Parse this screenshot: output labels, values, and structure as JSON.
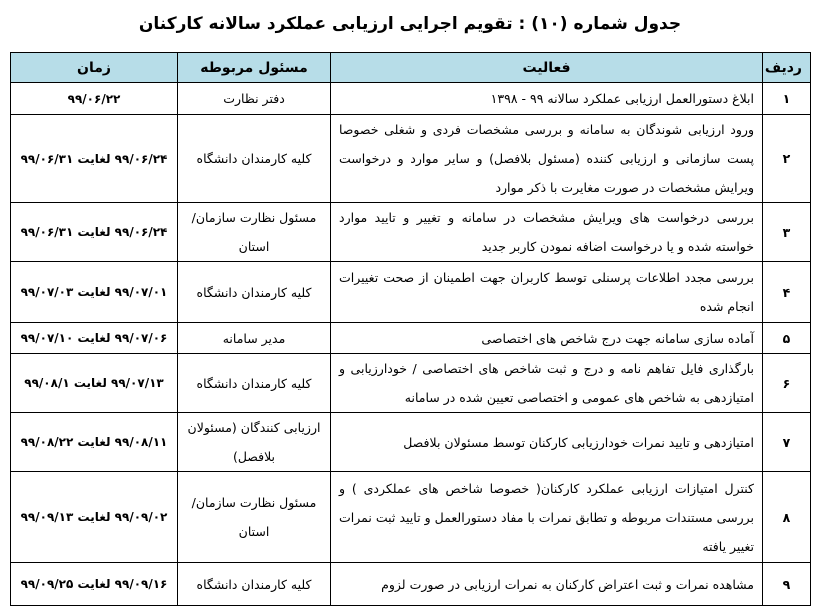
{
  "title": "جدول شماره (۱۰) : تقویم اجرایی ارزیابی عملکرد سالانه کارکنان",
  "headers": {
    "row": "ردیف",
    "activity": "فعالیت",
    "responsible": "مسئول مربوطه",
    "time": "زمان"
  },
  "header_color": "#b7dde8",
  "rows": [
    {
      "num": "۱",
      "activity": "ابلاغ دستورالعمل ارزیابی عملکرد سالانه ۹۹ - ۱۳۹۸",
      "responsible": "دفتر نظارت",
      "time": "۹۹/۰۶/۲۲"
    },
    {
      "num": "۲",
      "activity": "ورود ارزیابی شوندگان به سامانه و بررسی مشخصات فردی و شغلی خصوصا پست سازمانی و ارزیابی کننده (مسئول بلافصل) و سایر موارد و درخواست ویرایش مشخصات در صورت مغایرت با ذکر موارد",
      "responsible": "کلیه کارمندان دانشگاه",
      "time": "۹۹/۰۶/۲۴ لغایت ۹۹/۰۶/۳۱"
    },
    {
      "num": "۳",
      "activity": "بررسی درخواست های ویرایش مشخصات در سامانه و تغییر و تایید موارد خواسته شده و یا درخواست اضافه نمودن کاربر جدید",
      "responsible": "مسئول نظارت سازمان/استان",
      "time": "۹۹/۰۶/۲۴ لغایت ۹۹/۰۶/۳۱"
    },
    {
      "num": "۴",
      "activity": "بررسی مجدد اطلاعات پرسنلی توسط کاربران جهت اطمینان از صحت تغییرات انجام شده",
      "responsible": "کلیه کارمندان دانشگاه",
      "time": "۹۹/۰۷/۰۱ لغایت ۹۹/۰۷/۰۳"
    },
    {
      "num": "۵",
      "activity": "آماده سازی سامانه جهت درج شاخص های اختصاصی",
      "responsible": "مدیر سامانه",
      "time": "۹۹/۰۷/۰۶ لغایت ۹۹/۰۷/۱۰"
    },
    {
      "num": "۶",
      "activity": "بارگذاری فایل تفاهم نامه و درج و ثبت شاخص های اختصاصی / خودارزیابی و امتیازدهی به شاخص های عمومی و اختصاصی تعیین شده در سامانه",
      "responsible": "کلیه کارمندان دانشگاه",
      "time": "۹۹/۰۷/۱۳ لغایت ۹۹/۰۸/۱"
    },
    {
      "num": "۷",
      "activity": "امتیازدهی و تایید نمرات خودارزیابی کارکنان توسط مسئولان بلافصل",
      "responsible": "ارزیابی کنندگان (مسئولان بلافصل)",
      "time": "۹۹/۰۸/۱۱ لغایت ۹۹/۰۸/۲۲"
    },
    {
      "num": "۸",
      "activity": "کنترل امتیازات ارزیابی عملکرد کارکنان( خصوصا شاخص های عملکردی ) و بررسی مستندات مربوطه و تطابق نمرات با مفاد دستورالعمل و تایید ثبت نمرات تغییر یافته",
      "responsible": "مسئول نظارت سازمان/ استان",
      "time": "۹۹/۰۹/۰۲ لغایت ۹۹/۰۹/۱۳"
    },
    {
      "num": "۹",
      "activity": "مشاهده نمرات و ثبت اعتراض کارکنان به نمرات ارزیابی در صورت لزوم",
      "responsible": "کلیه کارمندان دانشگاه",
      "time": "۹۹/۰۹/۱۶ لغایت ۹۹/۰۹/۲۵"
    }
  ]
}
